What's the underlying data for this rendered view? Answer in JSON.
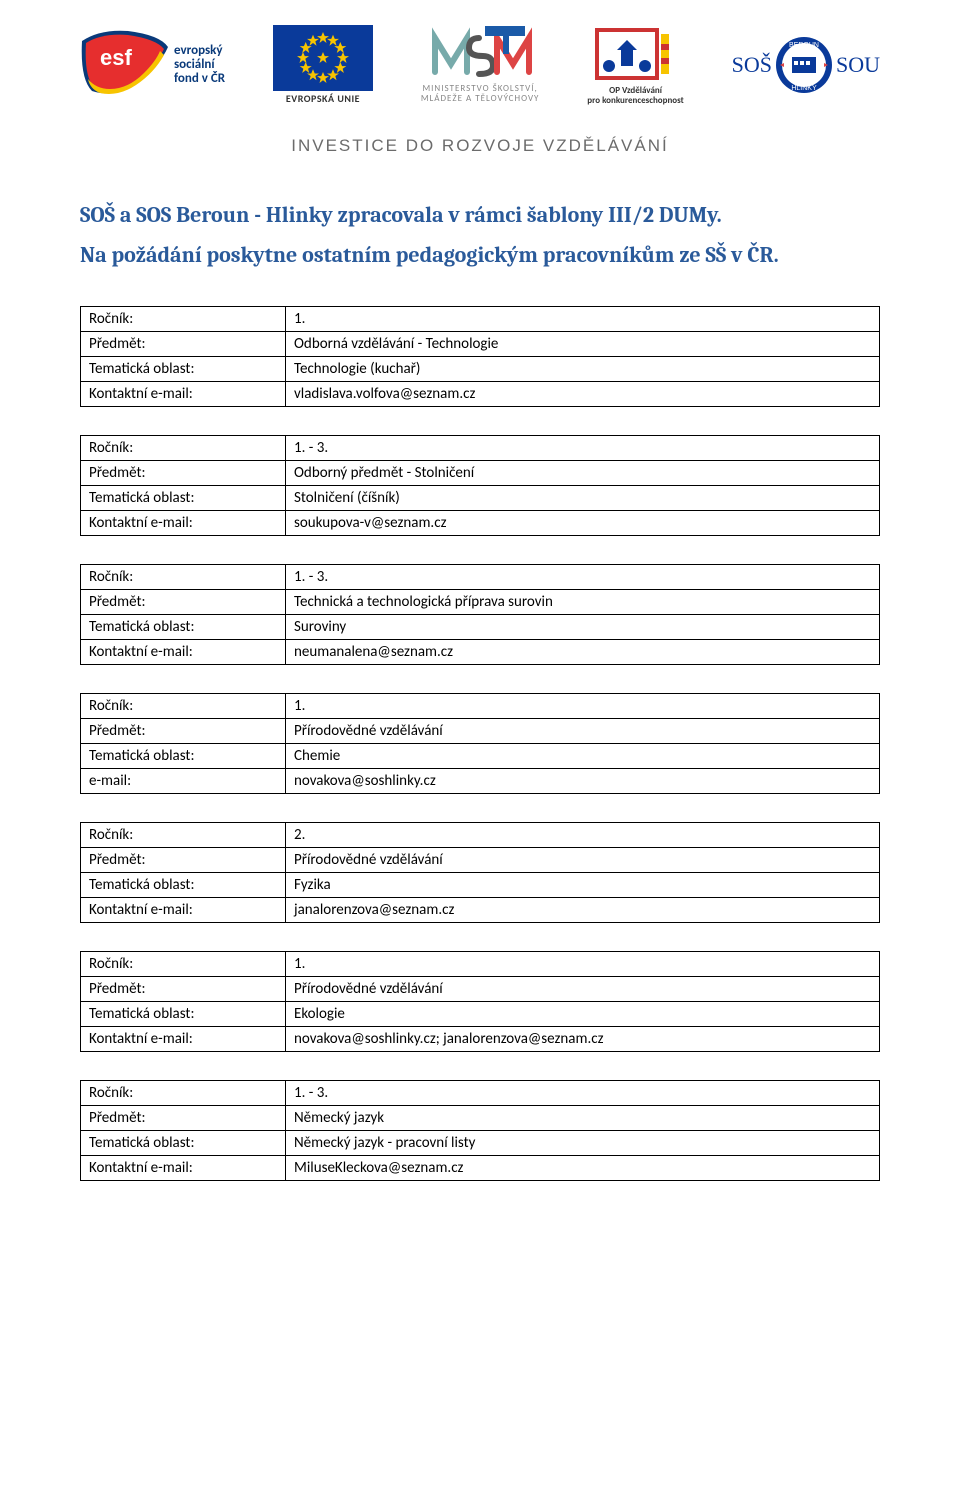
{
  "colors": {
    "heading": "#2a5a9a",
    "investice_text": "#6b6b6b",
    "border": "#000000",
    "body_text": "#000000",
    "bg": "#ffffff"
  },
  "logos": {
    "esf_caption": "evropský\nsociální\nfond v ČR",
    "eu_caption": "EVROPSKÁ UNIE",
    "msmt_line1": "MINISTERSTVO ŠKOLSTVÍ,",
    "msmt_line2": "MLÁDEŽE A TĚLOVÝCHOVY",
    "op_line1": "OP Vzdělávání",
    "op_line2": "pro konkurenceschopnost",
    "sos_left": "SOŠ",
    "sos_right": "SOU"
  },
  "investice_banner": "INVESTICE DO ROZVOJE VZDĚLÁVÁNÍ",
  "title_line1": "SOŠ a SOS Beroun - Hlinky zpracovala v rámci šablony III/2 DUMy.",
  "title_line2": "Na požádání poskytne ostatním pedagogickým pracovníkům ze SŠ v ČR.",
  "row_labels": {
    "rocnik": "Ročník:",
    "predmet": "Předmět:",
    "oblast": "Tematická oblast:",
    "kontakt": "Kontaktní e-mail:",
    "email": "e-mail:"
  },
  "tables": [
    {
      "rocnik": "1.",
      "predmet": "Odborná vzdělávání - Technologie",
      "oblast": "Technologie (kuchař)",
      "kontakt_label": "kontakt",
      "kontakt": "vladislava.volfova@seznam.cz"
    },
    {
      "rocnik": "1. - 3.",
      "predmet": "Odborný předmět - Stolničení",
      "oblast": "Stolničení (číšník)",
      "kontakt_label": "kontakt",
      "kontakt": "soukupova-v@seznam.cz"
    },
    {
      "rocnik": "1. - 3.",
      "predmet": "Technická a technologická příprava surovin",
      "oblast": "Suroviny",
      "kontakt_label": "kontakt",
      "kontakt": "neumanalena@seznam.cz"
    },
    {
      "rocnik": "1.",
      "predmet": "Přírodovědné vzdělávání",
      "oblast": "Chemie",
      "kontakt_label": "email",
      "kontakt": "novakova@soshlinky.cz"
    },
    {
      "rocnik": "2.",
      "predmet": "Přírodovědné vzdělávání",
      "oblast": "Fyzika",
      "kontakt_label": "kontakt",
      "kontakt": "janalorenzova@seznam.cz"
    },
    {
      "rocnik": "1.",
      "predmet": "Přírodovědné vzdělávání",
      "oblast": "Ekologie",
      "kontakt_label": "kontakt",
      "kontakt": "novakova@soshlinky.cz;  janalorenzova@seznam.cz"
    },
    {
      "rocnik": "1. - 3.",
      "predmet": "Německý jazyk",
      "oblast": "Německý jazyk - pracovní listy",
      "kontakt_label": "kontakt",
      "kontakt": "MiluseKleckova@seznam.cz"
    }
  ]
}
